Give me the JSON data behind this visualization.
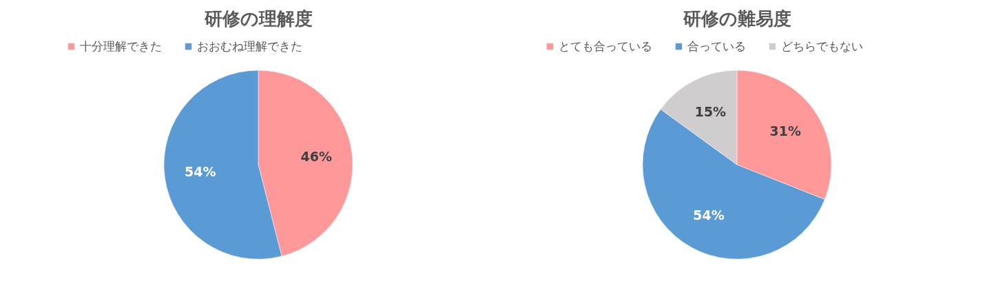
{
  "chart_data": [
    {
      "type": "pie",
      "title": "研修の理解度",
      "categories": [
        "十分理解できた",
        "おおむね理解できた"
      ],
      "values": [
        46,
        54
      ],
      "colors": [
        "#ff9999",
        "#5b9bd5"
      ],
      "value_labels": [
        "46%",
        "54%"
      ],
      "legend": "top"
    },
    {
      "type": "pie",
      "title": "研修の難易度",
      "categories": [
        "とても合っている",
        "合っている",
        "どちらでもない"
      ],
      "values": [
        31,
        54,
        15
      ],
      "colors": [
        "#ff9999",
        "#5b9bd5",
        "#cfcdcd"
      ],
      "value_labels": [
        "31%",
        "54%",
        "15%"
      ],
      "legend": "top"
    }
  ]
}
